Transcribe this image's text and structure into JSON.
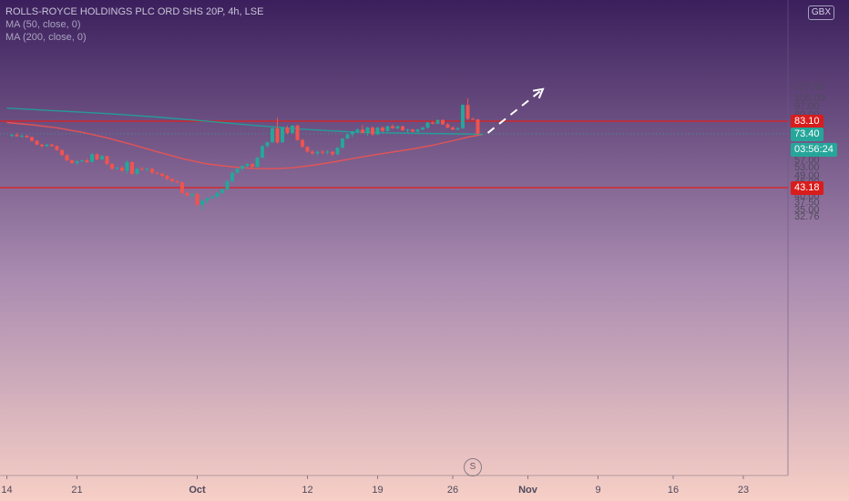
{
  "legend": {
    "title": "ROLLS-ROYCE HOLDINGS PLC ORD SHS 20P, 4h, LSE",
    "ma50": "MA (50, close, 0)",
    "ma200": "MA (200, close, 0)"
  },
  "currency_label": "GBX",
  "event_marker": "S",
  "colors": {
    "bg_top": "#3a1f5c",
    "bg_bottom": "#f7cfc6",
    "up": "#26a69a",
    "down": "#ef5350",
    "ma50": "#ef5350",
    "ma200": "#1fa39a",
    "hline": "#e01e1e",
    "axis_text": "#4f4a5c"
  },
  "badges": {
    "resistance": "83.10",
    "last_price": "73.40",
    "countdown": "03:56:24",
    "support": "43.18"
  },
  "chart_data": {
    "type": "candlestick",
    "title": "ROLLS-ROYCE HOLDINGS PLC ORD SHS 20P, 4h, LSE",
    "y_scale": "log",
    "ylim": [
      31.5,
      117.5
    ],
    "y_ticks": [
      "32.76",
      "35.00",
      "37.50",
      "40.00",
      "43.18",
      "46.00",
      "49.00",
      "53.00",
      "57.00",
      "61.00",
      "65.00",
      "73.40",
      "79.00",
      "83.10",
      "89.00",
      "97.00",
      "105.00",
      "117.00"
    ],
    "x_ticks": [
      "14",
      "21",
      "Oct",
      "12",
      "19",
      "26",
      "Nov",
      "9",
      "16",
      "23"
    ],
    "horizontal_lines": [
      83.1,
      43.18
    ],
    "last_price": 73.4,
    "x_index_start": -1,
    "candles": [
      [
        72.0,
        73.5,
        71.0,
        72.5
      ],
      [
        72.5,
        74.0,
        71.5,
        71.5
      ],
      [
        71.5,
        73.0,
        70.5,
        72.0
      ],
      [
        72.0,
        72.5,
        70.5,
        71.0
      ],
      [
        71.0,
        71.5,
        68.0,
        68.5
      ],
      [
        68.5,
        69.0,
        65.5,
        66.0
      ],
      [
        66.0,
        66.5,
        64.0,
        65.0
      ],
      [
        65.0,
        66.5,
        64.5,
        66.0
      ],
      [
        66.0,
        66.5,
        64.5,
        65.0
      ],
      [
        65.0,
        65.5,
        62.0,
        62.5
      ],
      [
        62.5,
        63.0,
        59.0,
        59.5
      ],
      [
        59.5,
        60.0,
        56.0,
        56.5
      ],
      [
        56.5,
        57.0,
        54.5,
        55.0
      ],
      [
        55.0,
        56.5,
        54.0,
        56.0
      ],
      [
        56.0,
        57.0,
        55.5,
        56.5
      ],
      [
        56.5,
        57.5,
        55.0,
        55.5
      ],
      [
        55.5,
        60.5,
        55.5,
        60.0
      ],
      [
        60.0,
        60.5,
        56.5,
        57.0
      ],
      [
        57.0,
        59.5,
        56.5,
        59.0
      ],
      [
        59.0,
        59.0,
        54.0,
        54.5
      ],
      [
        54.5,
        55.0,
        51.5,
        52.0
      ],
      [
        52.0,
        53.0,
        51.5,
        52.5
      ],
      [
        52.5,
        53.5,
        50.5,
        51.0
      ],
      [
        51.0,
        56.5,
        49.5,
        55.5
      ],
      [
        55.5,
        56.0,
        49.0,
        49.5
      ],
      [
        49.5,
        52.5,
        49.0,
        52.0
      ],
      [
        52.0,
        53.0,
        51.0,
        51.5
      ],
      [
        51.5,
        52.5,
        50.5,
        52.0
      ],
      [
        52.0,
        52.5,
        49.5,
        50.0
      ],
      [
        50.0,
        50.5,
        49.0,
        49.5
      ],
      [
        49.5,
        50.0,
        48.0,
        48.5
      ],
      [
        48.5,
        49.0,
        46.5,
        47.0
      ],
      [
        47.0,
        47.5,
        45.5,
        46.0
      ],
      [
        46.0,
        46.5,
        45.0,
        45.5
      ],
      [
        45.5,
        46.0,
        40.5,
        41.0
      ],
      [
        41.0,
        41.5,
        39.5,
        40.0
      ],
      [
        40.0,
        41.0,
        39.0,
        40.5
      ],
      [
        40.5,
        41.0,
        36.0,
        36.5
      ],
      [
        36.5,
        38.5,
        34.5,
        38.0
      ],
      [
        38.0,
        39.0,
        37.0,
        39.0
      ],
      [
        39.0,
        40.0,
        38.5,
        39.5
      ],
      [
        39.5,
        41.5,
        39.0,
        41.0
      ],
      [
        41.0,
        43.0,
        40.5,
        42.5
      ],
      [
        42.5,
        46.5,
        42.0,
        46.0
      ],
      [
        46.0,
        50.5,
        45.5,
        50.0
      ],
      [
        50.0,
        52.5,
        49.5,
        52.0
      ],
      [
        52.0,
        54.0,
        51.0,
        53.5
      ],
      [
        53.5,
        55.0,
        52.5,
        54.5
      ],
      [
        54.5,
        55.0,
        52.0,
        53.0
      ],
      [
        53.0,
        58.5,
        52.5,
        58.0
      ],
      [
        58.0,
        65.5,
        57.5,
        65.0
      ],
      [
        65.0,
        68.0,
        64.0,
        67.5
      ],
      [
        67.5,
        78.0,
        67.0,
        77.5
      ],
      [
        77.5,
        86.0,
        66.5,
        67.5
      ],
      [
        67.5,
        78.5,
        67.0,
        78.0
      ],
      [
        78.0,
        79.5,
        73.0,
        74.0
      ],
      [
        74.0,
        80.0,
        73.5,
        79.5
      ],
      [
        79.5,
        80.5,
        68.5,
        69.0
      ],
      [
        69.0,
        70.0,
        64.0,
        64.5
      ],
      [
        64.5,
        65.0,
        61.0,
        61.5
      ],
      [
        61.5,
        62.5,
        59.5,
        60.5
      ],
      [
        60.5,
        62.0,
        59.0,
        61.5
      ],
      [
        61.5,
        62.5,
        60.0,
        61.0
      ],
      [
        61.0,
        62.5,
        60.0,
        61.5
      ],
      [
        61.5,
        62.0,
        59.0,
        60.0
      ],
      [
        60.0,
        64.5,
        59.5,
        64.0
      ],
      [
        64.0,
        70.5,
        63.5,
        70.0
      ],
      [
        70.0,
        73.5,
        69.5,
        73.0
      ],
      [
        73.0,
        75.5,
        71.0,
        75.0
      ],
      [
        75.0,
        77.5,
        74.0,
        76.5
      ],
      [
        76.5,
        80.0,
        73.5,
        74.0
      ],
      [
        74.0,
        78.5,
        72.0,
        78.0
      ],
      [
        78.0,
        79.0,
        72.0,
        73.0
      ],
      [
        73.0,
        78.5,
        72.5,
        78.0
      ],
      [
        78.0,
        79.0,
        74.5,
        75.5
      ],
      [
        75.5,
        79.5,
        75.0,
        79.0
      ],
      [
        79.0,
        80.5,
        77.0,
        77.5
      ],
      [
        77.5,
        79.5,
        76.5,
        79.0
      ],
      [
        79.0,
        79.5,
        75.5,
        76.0
      ],
      [
        76.0,
        77.0,
        74.0,
        76.5
      ],
      [
        76.5,
        77.0,
        74.5,
        75.0
      ],
      [
        75.0,
        77.0,
        74.0,
        76.5
      ],
      [
        76.5,
        78.5,
        76.0,
        78.0
      ],
      [
        78.0,
        82.5,
        77.0,
        82.0
      ],
      [
        82.0,
        83.0,
        80.5,
        81.0
      ],
      [
        81.0,
        84.5,
        80.5,
        84.0
      ],
      [
        84.0,
        84.5,
        80.0,
        80.5
      ],
      [
        80.5,
        81.5,
        77.5,
        78.0
      ],
      [
        78.0,
        79.0,
        76.0,
        76.5
      ],
      [
        76.5,
        78.5,
        76.0,
        77.5
      ],
      [
        77.5,
        98.0,
        77.0,
        97.5
      ],
      [
        97.5,
        104.0,
        84.0,
        85.0
      ],
      [
        85.0,
        86.0,
        84.0,
        84.5
      ],
      [
        84.5,
        85.0,
        72.0,
        73.4
      ]
    ],
    "series": [
      {
        "name": "MA (50, close, 0)",
        "points": [
          [
            -1,
            82.0
          ],
          [
            4,
            80.2
          ],
          [
            9,
            77.8
          ],
          [
            14,
            74.5
          ],
          [
            19,
            70.5
          ],
          [
            24,
            66.0
          ],
          [
            29,
            61.5
          ],
          [
            34,
            57.5
          ],
          [
            39,
            54.5
          ],
          [
            44,
            53.0
          ],
          [
            48,
            52.2
          ],
          [
            52,
            52.0
          ],
          [
            56,
            52.5
          ],
          [
            60,
            53.8
          ],
          [
            64,
            55.5
          ],
          [
            68,
            57.5
          ],
          [
            72,
            59.5
          ],
          [
            76,
            61.3
          ],
          [
            80,
            63.2
          ],
          [
            84,
            65.5
          ],
          [
            88,
            68.5
          ],
          [
            91,
            71.0
          ],
          [
            94,
            73.0
          ]
        ]
      },
      {
        "name": "MA (200, close, 0)",
        "points": [
          [
            -1,
            94.5
          ],
          [
            9,
            92.0
          ],
          [
            19,
            89.5
          ],
          [
            29,
            86.5
          ],
          [
            39,
            83.0
          ],
          [
            49,
            79.5
          ],
          [
            59,
            76.5
          ],
          [
            69,
            74.5
          ],
          [
            79,
            73.8
          ],
          [
            89,
            73.3
          ],
          [
            94,
            73.0
          ]
        ]
      }
    ],
    "projection_arrow": {
      "from": [
        95,
        74.0
      ],
      "to": [
        106,
        114.0
      ]
    }
  }
}
